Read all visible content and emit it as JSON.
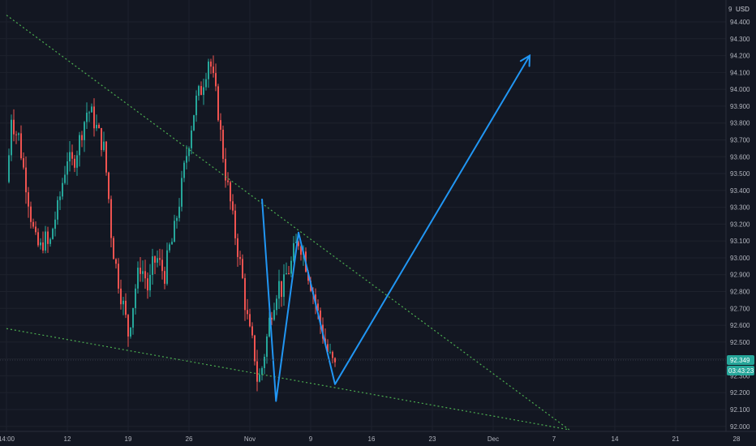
{
  "colors": {
    "background": "#131722",
    "grid": "#1e222d",
    "axis_text": "#b2b5be",
    "bull": "#26a69a",
    "bear": "#ef5350",
    "trendline": "#4caf50",
    "projection": "#2196f3",
    "price_tag_bg": "#26a69a"
  },
  "chart_data": {
    "type": "candlestick",
    "currency": "USD",
    "y_range": [
      91.97,
      94.53
    ],
    "y_ticks": [
      "94.400",
      "94.300",
      "94.200",
      "94.100",
      "94.000",
      "93.900",
      "93.800",
      "93.700",
      "93.600",
      "93.500",
      "93.400",
      "93.300",
      "93.200",
      "93.100",
      "93.000",
      "92.900",
      "92.800",
      "92.700",
      "92.600",
      "92.500",
      "92.400",
      "92.300",
      "92.200",
      "92.100",
      "92.000"
    ],
    "x_ticks": [
      {
        "label": "14:00",
        "t": 0
      },
      {
        "label": "12",
        "t": 1
      },
      {
        "label": "19",
        "t": 2
      },
      {
        "label": "26",
        "t": 3
      },
      {
        "label": "Nov",
        "t": 4
      },
      {
        "label": "9",
        "t": 5
      },
      {
        "label": "16",
        "t": 6
      },
      {
        "label": "23",
        "t": 7
      },
      {
        "label": "Dec",
        "t": 8
      },
      {
        "label": "7",
        "t": 9
      },
      {
        "label": "14",
        "t": 10
      },
      {
        "label": "21",
        "t": 11
      },
      {
        "label": "28",
        "t": 12
      }
    ],
    "price_path": [
      {
        "t": 0.0,
        "p": 93.45
      },
      {
        "t": 0.03,
        "p": 93.55
      },
      {
        "t": 0.08,
        "p": 93.85
      },
      {
        "t": 0.14,
        "p": 93.75
      },
      {
        "t": 0.2,
        "p": 93.72
      },
      {
        "t": 0.27,
        "p": 93.55
      },
      {
        "t": 0.34,
        "p": 93.4
      },
      {
        "t": 0.4,
        "p": 93.25
      },
      {
        "t": 0.47,
        "p": 93.1
      },
      {
        "t": 0.55,
        "p": 93.05
      },
      {
        "t": 0.63,
        "p": 93.12
      },
      {
        "t": 0.7,
        "p": 93.05
      },
      {
        "t": 0.77,
        "p": 93.2
      },
      {
        "t": 0.85,
        "p": 93.3
      },
      {
        "t": 0.92,
        "p": 93.45
      },
      {
        "t": 1.0,
        "p": 93.6
      },
      {
        "t": 1.07,
        "p": 93.55
      },
      {
        "t": 1.13,
        "p": 93.6
      },
      {
        "t": 1.2,
        "p": 93.7
      },
      {
        "t": 1.27,
        "p": 93.8
      },
      {
        "t": 1.33,
        "p": 93.88
      },
      {
        "t": 1.4,
        "p": 93.85
      },
      {
        "t": 1.47,
        "p": 93.78
      },
      {
        "t": 1.53,
        "p": 93.72
      },
      {
        "t": 1.6,
        "p": 93.65
      },
      {
        "t": 1.67,
        "p": 93.4
      },
      {
        "t": 1.73,
        "p": 93.1
      },
      {
        "t": 1.8,
        "p": 92.95
      },
      {
        "t": 1.87,
        "p": 92.8
      },
      {
        "t": 1.93,
        "p": 92.7
      },
      {
        "t": 2.0,
        "p": 92.55
      },
      {
        "t": 2.07,
        "p": 92.7
      },
      {
        "t": 2.13,
        "p": 92.85
      },
      {
        "t": 2.2,
        "p": 92.95
      },
      {
        "t": 2.27,
        "p": 92.9
      },
      {
        "t": 2.33,
        "p": 92.8
      },
      {
        "t": 2.4,
        "p": 92.95
      },
      {
        "t": 2.47,
        "p": 93.0
      },
      {
        "t": 2.53,
        "p": 92.95
      },
      {
        "t": 2.6,
        "p": 92.9
      },
      {
        "t": 2.67,
        "p": 93.05
      },
      {
        "t": 2.73,
        "p": 93.1
      },
      {
        "t": 2.8,
        "p": 93.25
      },
      {
        "t": 2.87,
        "p": 93.4
      },
      {
        "t": 2.93,
        "p": 93.55
      },
      {
        "t": 3.0,
        "p": 93.7
      },
      {
        "t": 3.07,
        "p": 93.85
      },
      {
        "t": 3.13,
        "p": 93.95
      },
      {
        "t": 3.2,
        "p": 94.0
      },
      {
        "t": 3.27,
        "p": 94.1
      },
      {
        "t": 3.33,
        "p": 94.2
      },
      {
        "t": 3.4,
        "p": 94.05
      },
      {
        "t": 3.47,
        "p": 93.9
      },
      {
        "t": 3.53,
        "p": 93.7
      },
      {
        "t": 3.6,
        "p": 93.5
      },
      {
        "t": 3.67,
        "p": 93.35
      },
      {
        "t": 3.73,
        "p": 93.2
      },
      {
        "t": 3.8,
        "p": 93.05
      },
      {
        "t": 3.87,
        "p": 92.9
      },
      {
        "t": 3.93,
        "p": 92.7
      },
      {
        "t": 4.0,
        "p": 92.55
      },
      {
        "t": 4.07,
        "p": 92.45
      },
      {
        "t": 4.13,
        "p": 92.25
      },
      {
        "t": 4.2,
        "p": 92.35
      },
      {
        "t": 4.27,
        "p": 92.5
      },
      {
        "t": 4.33,
        "p": 92.65
      },
      {
        "t": 4.4,
        "p": 92.75
      },
      {
        "t": 4.47,
        "p": 92.85
      },
      {
        "t": 4.53,
        "p": 92.8
      },
      {
        "t": 4.6,
        "p": 92.9
      },
      {
        "t": 4.67,
        "p": 92.95
      },
      {
        "t": 4.73,
        "p": 93.05
      },
      {
        "t": 4.8,
        "p": 93.1
      },
      {
        "t": 4.87,
        "p": 93.05
      },
      {
        "t": 4.93,
        "p": 92.95
      },
      {
        "t": 5.0,
        "p": 92.85
      },
      {
        "t": 5.07,
        "p": 92.75
      },
      {
        "t": 5.13,
        "p": 92.65
      },
      {
        "t": 5.2,
        "p": 92.55
      },
      {
        "t": 5.27,
        "p": 92.45
      },
      {
        "t": 5.33,
        "p": 92.4
      },
      {
        "t": 5.4,
        "p": 92.349
      }
    ],
    "drawings": {
      "upper_trendline": [
        {
          "t": 0.0,
          "p": 94.44
        },
        {
          "t": 9.25,
          "p": 91.98
        }
      ],
      "lower_trendline": [
        {
          "t": 0.0,
          "p": 92.58
        },
        {
          "t": 9.25,
          "p": 91.98
        }
      ],
      "projection_path": [
        {
          "t": 4.2,
          "p": 93.35
        },
        {
          "t": 4.43,
          "p": 92.15
        },
        {
          "t": 4.8,
          "p": 93.15
        },
        {
          "t": 5.4,
          "p": 92.25
        },
        {
          "t": 8.6,
          "p": 94.2
        }
      ]
    },
    "last_price": "92.349",
    "countdown": "03:43:23"
  }
}
